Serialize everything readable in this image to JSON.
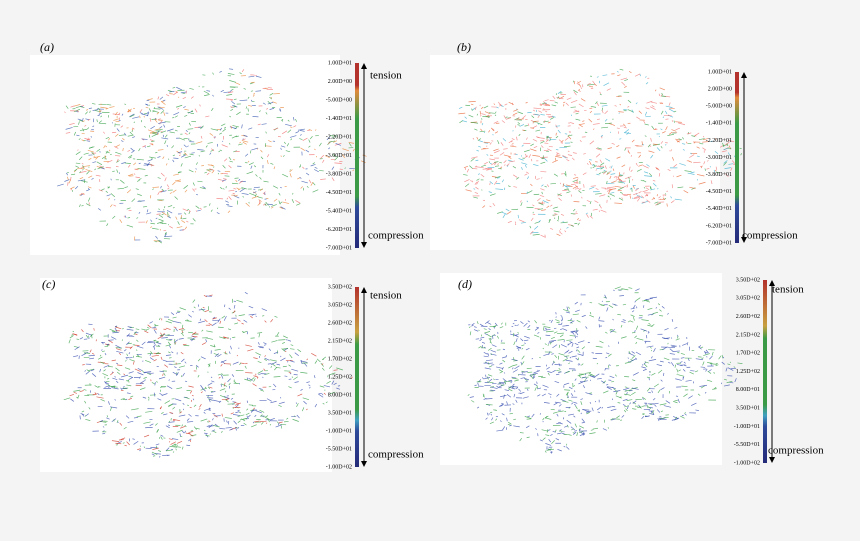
{
  "panels": [
    {
      "label": "(a)",
      "colorbar": {
        "ticks": [
          "1.00D+01",
          "2.00D+00",
          "-5.00D+00",
          "-1.40D+01",
          "-2.20D+01",
          "-3.00D+01",
          "-3.80D+01",
          "-4.50D+01",
          "-5.40D+01",
          "-6.20D+01",
          "-7.00D+01"
        ],
        "top": "tension",
        "bottom": "compression"
      }
    },
    {
      "label": "(b)",
      "colorbar": {
        "ticks": [
          "1.00D+01",
          "2.00D+00",
          "-5.00D+00",
          "-1.40D+01",
          "-2.20D+01",
          "-3.00D+01",
          "-3.80D+01",
          "-4.50D+01",
          "-5.40D+01",
          "-6.20D+01",
          "-7.00D+01"
        ],
        "bottom": "compression"
      }
    },
    {
      "label": "(c)",
      "colorbar": {
        "ticks": [
          "3.50D+02",
          "3.05D+02",
          "2.60D+02",
          "2.15D+02",
          "1.70D+02",
          "1.25D+02",
          "8.00D+01",
          "3.50D+01",
          "-1.00D+01",
          "-5.50D+01",
          "-1.00D+02"
        ],
        "top": "tension",
        "bottom": "compression"
      }
    },
    {
      "label": "(d)",
      "colorbar": {
        "ticks": [
          "3.50D+02",
          "3.05D+02",
          "2.60D+02",
          "2.15D+02",
          "1.70D+02",
          "1.25D+02",
          "8.00D+01",
          "3.50D+01",
          "-1.00D+01",
          "-5.50D+01",
          "-1.00D+02"
        ],
        "top": "tension",
        "bottom": "compression"
      }
    }
  ]
}
